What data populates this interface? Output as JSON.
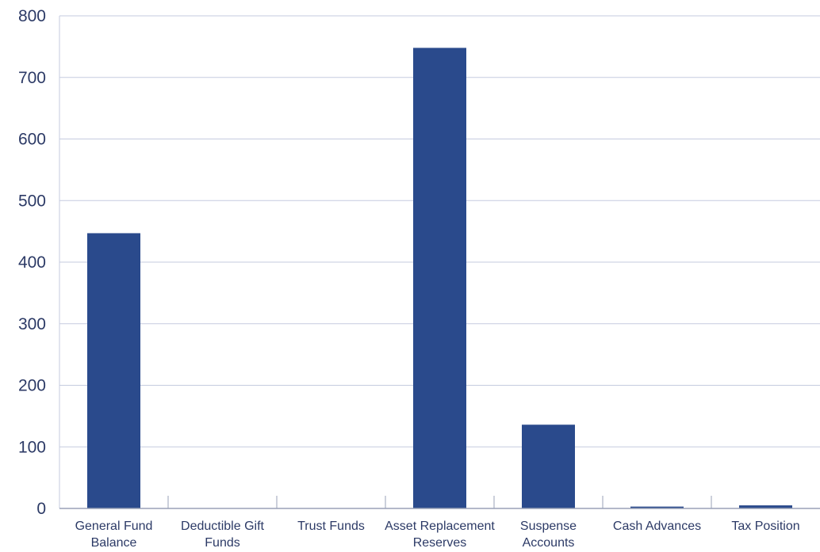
{
  "chart_data": {
    "type": "bar",
    "title": "",
    "xlabel": "",
    "ylabel": "",
    "categories": [
      [
        "General Fund",
        "Balance"
      ],
      [
        "Deductible Gift",
        "Funds"
      ],
      [
        "Trust Funds"
      ],
      [
        "Asset Replacement",
        "Reserves"
      ],
      [
        "Suspense",
        "Accounts"
      ],
      [
        "Cash Advances"
      ],
      [
        "Tax Position"
      ]
    ],
    "values": [
      447,
      0,
      0,
      748,
      136,
      3,
      5
    ],
    "ylim": [
      0,
      800
    ],
    "yticks": [
      0,
      100,
      200,
      300,
      400,
      500,
      600,
      700,
      800
    ],
    "grid": true,
    "legend": "none",
    "colors": {
      "bar": "#2a4a8c",
      "grid": "#c5cbdf",
      "axis": "#9aa1b7",
      "text": "#2c3a66"
    }
  }
}
